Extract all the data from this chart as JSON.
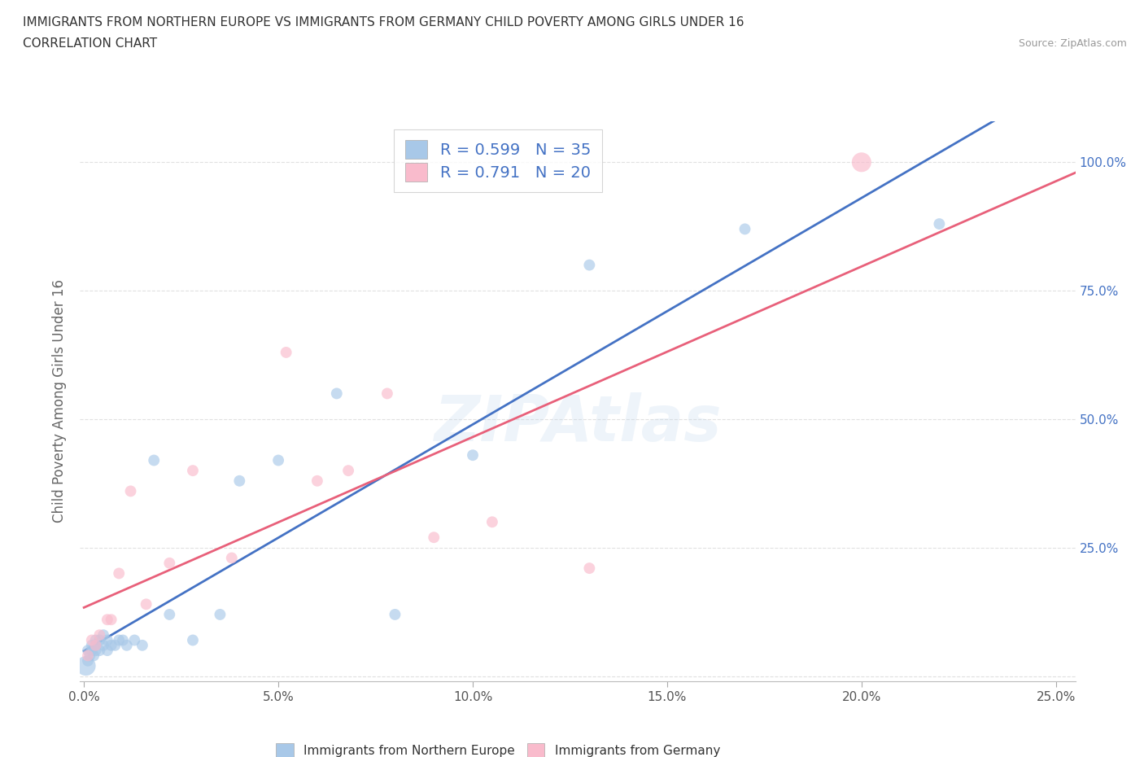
{
  "title_line1": "IMMIGRANTS FROM NORTHERN EUROPE VS IMMIGRANTS FROM GERMANY CHILD POVERTY AMONG GIRLS UNDER 16",
  "title_line2": "CORRELATION CHART",
  "source": "Source: ZipAtlas.com",
  "ylabel": "Child Poverty Among Girls Under 16",
  "xlim": [
    -0.001,
    0.255
  ],
  "ylim": [
    -0.01,
    1.08
  ],
  "xticks": [
    0.0,
    0.05,
    0.1,
    0.15,
    0.2,
    0.25
  ],
  "yticks": [
    0.0,
    0.25,
    0.5,
    0.75,
    1.0
  ],
  "xticklabels": [
    "0.0%",
    "5.0%",
    "10.0%",
    "15.0%",
    "20.0%",
    "25.0%"
  ],
  "ytick_right_labels": [
    "",
    "25.0%",
    "50.0%",
    "75.0%",
    "100.0%"
  ],
  "blue_color": "#A8C8E8",
  "pink_color": "#F9BBCC",
  "blue_line_color": "#4472C4",
  "pink_line_color": "#E8607A",
  "legend_color": "#4472C4",
  "blue_label": "Immigrants from Northern Europe",
  "pink_label": "Immigrants from Germany",
  "R_blue": "0.599",
  "N_blue": "35",
  "R_pink": "0.791",
  "N_pink": "20",
  "blue_x": [
    0.0005,
    0.001,
    0.001,
    0.0015,
    0.002,
    0.002,
    0.0025,
    0.003,
    0.003,
    0.003,
    0.004,
    0.004,
    0.005,
    0.005,
    0.006,
    0.006,
    0.007,
    0.008,
    0.009,
    0.01,
    0.011,
    0.013,
    0.015,
    0.018,
    0.022,
    0.028,
    0.035,
    0.04,
    0.05,
    0.065,
    0.08,
    0.1,
    0.13,
    0.17,
    0.22
  ],
  "blue_y": [
    0.02,
    0.03,
    0.05,
    0.04,
    0.05,
    0.06,
    0.04,
    0.05,
    0.07,
    0.06,
    0.05,
    0.07,
    0.06,
    0.08,
    0.05,
    0.07,
    0.06,
    0.06,
    0.07,
    0.07,
    0.06,
    0.07,
    0.06,
    0.42,
    0.12,
    0.07,
    0.12,
    0.38,
    0.42,
    0.55,
    0.12,
    0.43,
    0.8,
    0.87,
    0.88
  ],
  "blue_sizes": [
    300,
    100,
    100,
    100,
    100,
    100,
    100,
    100,
    100,
    100,
    100,
    100,
    100,
    100,
    100,
    100,
    100,
    100,
    100,
    100,
    100,
    100,
    100,
    100,
    100,
    100,
    100,
    100,
    100,
    100,
    100,
    100,
    100,
    100,
    100
  ],
  "pink_x": [
    0.001,
    0.002,
    0.003,
    0.004,
    0.006,
    0.007,
    0.009,
    0.012,
    0.016,
    0.022,
    0.028,
    0.038,
    0.052,
    0.06,
    0.068,
    0.078,
    0.09,
    0.105,
    0.13,
    0.2
  ],
  "pink_y": [
    0.04,
    0.07,
    0.06,
    0.08,
    0.11,
    0.11,
    0.2,
    0.36,
    0.14,
    0.22,
    0.4,
    0.23,
    0.63,
    0.38,
    0.4,
    0.55,
    0.27,
    0.3,
    0.21,
    1.0
  ],
  "pink_sizes": [
    100,
    100,
    100,
    100,
    100,
    100,
    100,
    100,
    100,
    100,
    100,
    100,
    100,
    100,
    100,
    100,
    100,
    100,
    100,
    300
  ],
  "watermark": "ZIPAtlas",
  "grid_color": "#DDDDDD",
  "bg_color": "#FFFFFF"
}
